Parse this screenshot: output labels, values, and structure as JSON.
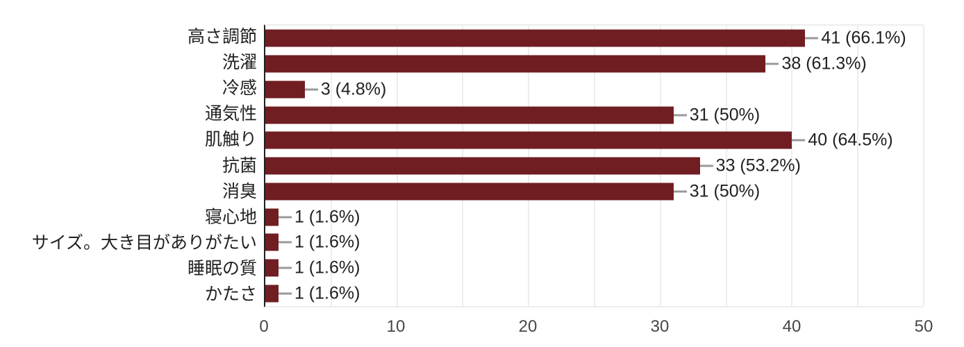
{
  "chart_data": {
    "type": "bar",
    "orientation": "horizontal",
    "title": "",
    "categories": [
      "高さ調節",
      "洗濯",
      "冷感",
      "通気性",
      "肌触り",
      "抗菌",
      "消臭",
      "寝心地",
      "サイズ。大き目がありがたい",
      "睡眠の質",
      "かたさ"
    ],
    "values": [
      41,
      38,
      3,
      31,
      40,
      33,
      31,
      1,
      1,
      1,
      1
    ],
    "value_labels": [
      "41 (66.1%)",
      "38 (61.3%)",
      "3 (4.8%)",
      "31 (50%)",
      "40 (64.5%)",
      "33 (53.2%)",
      "31 (50%)",
      "1 (1.6%)",
      "1 (1.6%)",
      "1 (1.6%)",
      "1 (1.6%)"
    ],
    "xlim": [
      0,
      50
    ],
    "x_ticks": [
      "0",
      "10",
      "20",
      "30",
      "40",
      "50"
    ],
    "gridline_step": 5,
    "grid": "vertical-light",
    "legend": "none",
    "colors": {
      "bar": "#701e22",
      "axis_line": "#212121",
      "gridline": "#ededed",
      "connector": "#999999",
      "tick_label": "#474747",
      "category_label": "#212121",
      "value_label": "#212121",
      "background": "#ffffff"
    }
  }
}
